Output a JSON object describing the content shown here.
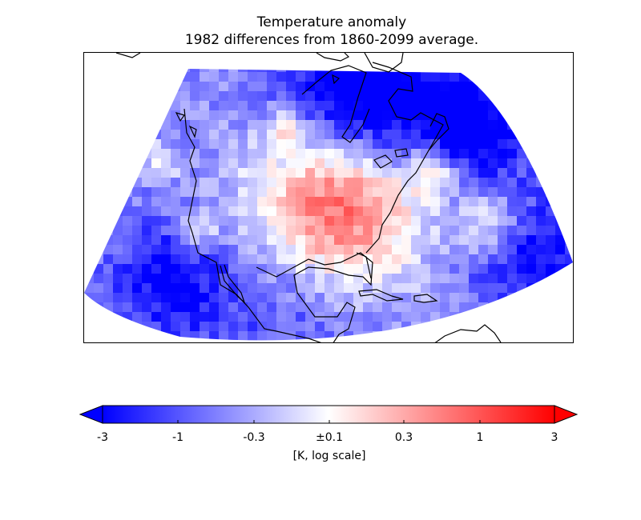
{
  "title": "Temperature anomaly",
  "subtitle": "1982 differences from 1860-2099 average.",
  "colorbar": {
    "label": "[K, log scale]",
    "tick_labels": [
      "-3",
      "-1",
      "-0.3",
      "±0.1",
      "0.3",
      "1",
      "3"
    ],
    "tick_values": [
      -3,
      -1,
      -0.3,
      0.1,
      0.3,
      1,
      3
    ],
    "cmap": "bwr",
    "extend": "both",
    "colors": {
      "min": "#0000ff",
      "mid": "#ffffff",
      "max": "#ff0000"
    }
  },
  "map": {
    "projection": "conic",
    "features": [
      "coastlines",
      "anomaly-grid"
    ],
    "anomaly_regions": [
      {
        "name": "Central and Eastern United States",
        "anomaly": 1.0
      },
      {
        "name": "Hudson Bay / Eastern Canada",
        "anomaly": -2.0
      },
      {
        "name": "Northeast Pacific",
        "anomaly": -0.8
      },
      {
        "name": "Mexico and Gulf of Mexico",
        "anomaly": -0.5
      },
      {
        "name": "Western North Atlantic",
        "anomaly": -0.4
      }
    ]
  }
}
